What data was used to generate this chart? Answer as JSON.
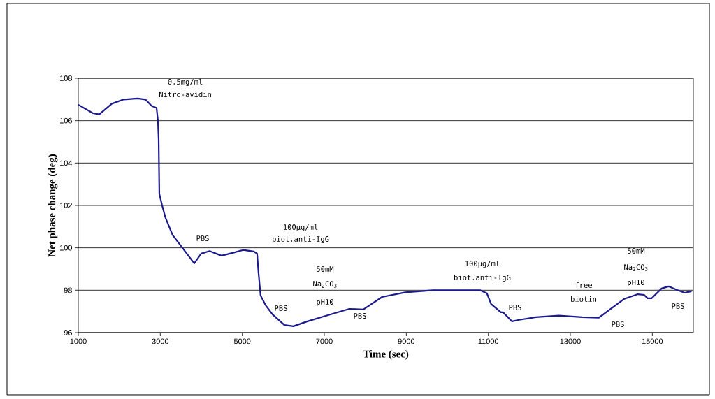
{
  "chart_data": {
    "type": "line",
    "xlabel": "Time (sec)",
    "ylabel": "Net phase change (deg)",
    "xlim": [
      1000,
      16000
    ],
    "xticks": [
      1000,
      3000,
      5000,
      7000,
      9000,
      11000,
      13000,
      15000
    ],
    "ylim": [
      96,
      108
    ],
    "yticks": [
      96,
      98,
      100,
      102,
      104,
      106,
      108
    ],
    "grid": "y",
    "marker": "none",
    "line_style": "solid",
    "series": [
      {
        "color": "#1a1a8c",
        "x": [
          1000,
          1358,
          1511,
          1818,
          2107,
          2448,
          2636,
          2789,
          2908,
          2942,
          2960,
          2976,
          3044,
          3130,
          3300,
          3520,
          3828,
          3998,
          4203,
          4492,
          4765,
          5020,
          5276,
          5361,
          5395,
          5446,
          5566,
          5736,
          6026,
          6247,
          6588,
          7048,
          7610,
          7951,
          8410,
          8973,
          9654,
          10796,
          10966,
          11068,
          11307,
          11358,
          11579,
          11750,
          12158,
          12720,
          13283,
          13692,
          13913,
          14305,
          14646,
          14799,
          14884,
          14986,
          15225,
          15395,
          15617,
          15787,
          15957
        ],
        "values": [
          106.75,
          106.35,
          106.3,
          106.8,
          107.0,
          107.05,
          107.0,
          106.7,
          106.6,
          106.0,
          105.1,
          102.55,
          102.0,
          101.4,
          100.6,
          100.05,
          99.27,
          99.73,
          99.85,
          99.63,
          99.76,
          99.9,
          99.83,
          99.73,
          98.84,
          97.75,
          97.3,
          96.86,
          96.36,
          96.3,
          96.53,
          96.8,
          97.12,
          97.09,
          97.68,
          97.9,
          98.0,
          98.0,
          97.85,
          97.35,
          96.96,
          96.96,
          96.53,
          96.6,
          96.73,
          96.8,
          96.73,
          96.7,
          97.02,
          97.58,
          97.81,
          97.78,
          97.62,
          97.62,
          98.08,
          98.18,
          98.0,
          97.88,
          97.95
        ]
      }
    ],
    "annotations": [
      "0.5mg/ml",
      "Nitro-avidin",
      "PBS",
      "100µg/ml",
      "biot.anti-IgG",
      "PBS",
      "50mM",
      "Na$_{2}$CO$_{3}$",
      "pH10",
      "PBS",
      "100µg/ml",
      "biot.anti-IgG",
      "PBS",
      "free",
      "biotin",
      "PBS",
      "50mM",
      "Na$_{2}$CO$_{3}$",
      "pH10",
      "PBS"
    ]
  }
}
